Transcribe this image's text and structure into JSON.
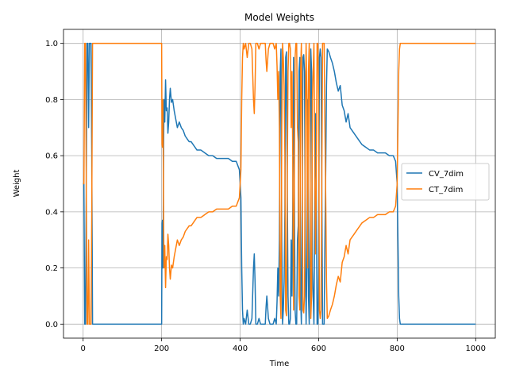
{
  "chart_data": {
    "type": "line",
    "title": "Model Weights",
    "xlabel": "Time",
    "ylabel": "Weight",
    "xlim": [
      -50,
      1050
    ],
    "ylim": [
      -0.05,
      1.05
    ],
    "x_ticks": [
      0,
      200,
      400,
      600,
      800,
      1000
    ],
    "y_ticks": [
      0.0,
      0.2,
      0.4,
      0.6,
      0.8,
      1.0
    ],
    "grid": true,
    "legend_placement": "center-right",
    "series": [
      {
        "name": "CV_7dim",
        "color": "#1f77b4",
        "x": [
          0,
          2,
          4,
          6,
          8,
          10,
          12,
          14,
          16,
          18,
          20,
          22,
          24,
          26,
          200,
          201,
          202,
          203,
          204,
          205,
          206,
          208,
          210,
          212,
          214,
          216,
          218,
          220,
          222,
          225,
          228,
          232,
          236,
          240,
          245,
          250,
          255,
          260,
          265,
          270,
          275,
          280,
          290,
          300,
          310,
          320,
          330,
          340,
          350,
          360,
          370,
          380,
          390,
          398,
          402,
          404,
          406,
          408,
          410,
          414,
          418,
          422,
          426,
          430,
          434,
          436,
          438,
          440,
          444,
          448,
          452,
          456,
          460,
          464,
          466,
          468,
          472,
          476,
          480,
          484,
          488,
          492,
          494,
          496,
          498,
          500,
          502,
          504,
          506,
          508,
          510,
          512,
          514,
          516,
          518,
          520,
          522,
          524,
          526,
          528,
          530,
          532,
          534,
          536,
          538,
          540,
          542,
          544,
          546,
          548,
          550,
          552,
          554,
          556,
          558,
          560,
          562,
          564,
          566,
          568,
          570,
          572,
          574,
          576,
          578,
          580,
          582,
          584,
          586,
          588,
          590,
          592,
          594,
          596,
          598,
          600,
          602,
          604,
          606,
          608,
          610,
          612,
          614,
          616,
          618,
          620,
          622,
          626,
          630,
          635,
          640,
          645,
          650,
          655,
          660,
          665,
          670,
          675,
          680,
          690,
          700,
          710,
          720,
          730,
          740,
          750,
          760,
          770,
          780,
          790,
          796,
          800,
          802,
          804,
          806,
          808,
          810,
          815,
          900,
          1000
        ],
        "y": [
          0.5,
          0.5,
          0.0,
          0.0,
          0.5,
          1.0,
          1.0,
          0.7,
          1.0,
          1.0,
          1.0,
          0.6,
          0.0,
          0.0,
          0.0,
          0.36,
          0.37,
          0.2,
          0.35,
          0.62,
          0.8,
          0.72,
          0.87,
          0.76,
          0.77,
          0.68,
          0.72,
          0.8,
          0.84,
          0.79,
          0.8,
          0.76,
          0.73,
          0.7,
          0.72,
          0.7,
          0.69,
          0.67,
          0.66,
          0.65,
          0.65,
          0.64,
          0.62,
          0.62,
          0.61,
          0.6,
          0.6,
          0.59,
          0.59,
          0.59,
          0.59,
          0.58,
          0.58,
          0.55,
          0.45,
          0.2,
          0.05,
          0.0,
          0.02,
          0.0,
          0.05,
          0.0,
          0.0,
          0.02,
          0.2,
          0.25,
          0.15,
          0.0,
          0.0,
          0.02,
          0.0,
          0.0,
          0.0,
          0.0,
          0.06,
          0.1,
          0.02,
          0.0,
          0.0,
          0.0,
          0.02,
          0.0,
          0.08,
          0.2,
          0.1,
          0.3,
          0.9,
          0.98,
          0.3,
          0.0,
          0.05,
          0.15,
          0.4,
          0.95,
          0.97,
          0.5,
          0.1,
          0.0,
          0.0,
          0.02,
          0.3,
          0.1,
          0.4,
          0.95,
          0.5,
          0.05,
          0.0,
          0.0,
          0.3,
          0.35,
          0.9,
          0.95,
          0.1,
          0.0,
          0.4,
          0.95,
          0.96,
          0.9,
          0.3,
          0.0,
          0.2,
          0.8,
          0.1,
          0.0,
          0.4,
          0.98,
          0.9,
          0.2,
          0.1,
          0.0,
          0.4,
          0.75,
          0.5,
          0.0,
          0.0,
          0.2,
          0.95,
          0.98,
          0.95,
          0.5,
          0.0,
          0.0,
          0.0,
          0.3,
          0.55,
          0.85,
          0.98,
          0.97,
          0.95,
          0.93,
          0.9,
          0.86,
          0.83,
          0.85,
          0.78,
          0.76,
          0.72,
          0.75,
          0.7,
          0.68,
          0.66,
          0.64,
          0.63,
          0.62,
          0.62,
          0.61,
          0.61,
          0.61,
          0.6,
          0.6,
          0.58,
          0.5,
          0.3,
          0.1,
          0.02,
          0.0,
          0.0,
          0.0,
          0.0,
          0.0
        ]
      },
      {
        "name": "CT_7dim",
        "color": "#ff7f0e",
        "x": [
          0,
          2,
          4,
          6,
          8,
          10,
          12,
          14,
          16,
          18,
          20,
          22,
          24,
          26,
          200,
          201,
          202,
          203,
          204,
          205,
          206,
          208,
          210,
          212,
          214,
          216,
          218,
          220,
          222,
          225,
          228,
          232,
          236,
          240,
          245,
          250,
          255,
          260,
          265,
          270,
          275,
          280,
          290,
          300,
          310,
          320,
          330,
          340,
          350,
          360,
          370,
          380,
          390,
          398,
          402,
          404,
          406,
          408,
          410,
          414,
          418,
          422,
          426,
          430,
          434,
          436,
          438,
          440,
          444,
          448,
          452,
          456,
          460,
          464,
          466,
          468,
          472,
          476,
          480,
          484,
          488,
          492,
          494,
          496,
          498,
          500,
          502,
          504,
          506,
          508,
          510,
          512,
          514,
          516,
          518,
          520,
          522,
          524,
          526,
          528,
          530,
          532,
          534,
          536,
          538,
          540,
          542,
          544,
          546,
          548,
          550,
          552,
          554,
          556,
          558,
          560,
          562,
          564,
          566,
          568,
          570,
          572,
          574,
          576,
          578,
          580,
          582,
          584,
          586,
          588,
          590,
          592,
          594,
          596,
          598,
          600,
          602,
          604,
          606,
          608,
          610,
          612,
          614,
          616,
          618,
          620,
          622,
          626,
          630,
          635,
          640,
          645,
          650,
          655,
          660,
          665,
          670,
          675,
          680,
          690,
          700,
          710,
          720,
          730,
          740,
          750,
          760,
          770,
          780,
          790,
          796,
          800,
          802,
          804,
          806,
          808,
          810,
          815,
          900,
          1000
        ],
        "y": [
          0.5,
          0.5,
          1.0,
          1.0,
          0.5,
          0.0,
          0.0,
          0.3,
          0.0,
          0.0,
          0.0,
          0.4,
          1.0,
          1.0,
          1.0,
          0.64,
          0.63,
          0.8,
          0.65,
          0.38,
          0.2,
          0.28,
          0.13,
          0.24,
          0.23,
          0.32,
          0.28,
          0.2,
          0.16,
          0.21,
          0.2,
          0.24,
          0.27,
          0.3,
          0.28,
          0.3,
          0.31,
          0.33,
          0.34,
          0.35,
          0.35,
          0.36,
          0.38,
          0.38,
          0.39,
          0.4,
          0.4,
          0.41,
          0.41,
          0.41,
          0.41,
          0.42,
          0.42,
          0.45,
          0.55,
          0.8,
          0.95,
          1.0,
          0.98,
          1.0,
          0.95,
          1.0,
          1.0,
          0.98,
          0.8,
          0.75,
          0.85,
          1.0,
          1.0,
          0.98,
          1.0,
          1.0,
          1.0,
          1.0,
          0.94,
          0.9,
          0.98,
          1.0,
          1.0,
          1.0,
          0.98,
          1.0,
          0.92,
          0.8,
          0.9,
          0.7,
          0.1,
          0.02,
          0.7,
          1.0,
          0.95,
          0.85,
          0.6,
          0.05,
          0.03,
          0.5,
          0.9,
          1.0,
          1.0,
          0.98,
          0.7,
          0.9,
          0.6,
          0.05,
          0.5,
          0.95,
          1.0,
          1.0,
          0.7,
          0.65,
          0.1,
          0.05,
          0.9,
          1.0,
          0.6,
          0.05,
          0.04,
          0.1,
          0.7,
          1.0,
          0.8,
          0.2,
          0.9,
          1.0,
          0.6,
          0.02,
          0.1,
          0.8,
          0.9,
          1.0,
          0.6,
          0.25,
          0.5,
          1.0,
          1.0,
          0.8,
          0.05,
          0.02,
          0.05,
          0.5,
          1.0,
          1.0,
          1.0,
          0.7,
          0.45,
          0.15,
          0.02,
          0.03,
          0.05,
          0.07,
          0.1,
          0.14,
          0.17,
          0.15,
          0.22,
          0.24,
          0.28,
          0.25,
          0.3,
          0.32,
          0.34,
          0.36,
          0.37,
          0.38,
          0.38,
          0.39,
          0.39,
          0.39,
          0.4,
          0.4,
          0.42,
          0.5,
          0.7,
          0.9,
          0.98,
          1.0,
          1.0,
          1.0,
          1.0,
          1.0
        ]
      }
    ]
  }
}
